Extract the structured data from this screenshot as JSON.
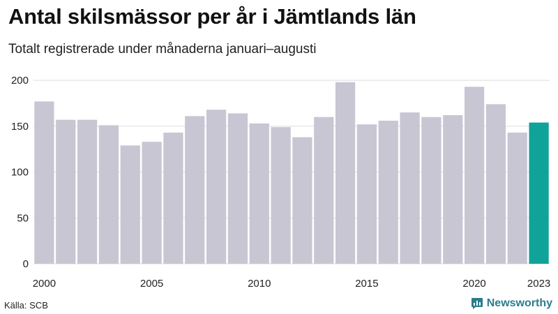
{
  "title": "Antal skilsmässor per år i Jämtlands län",
  "subtitle": "Totalt registrerade under månaderna januari–augusti",
  "source": "Källa: SCB",
  "brand": {
    "name": "Newsworthy",
    "icon": "newsworthy-logo-icon",
    "color": "#2c7c8c"
  },
  "chart_data": {
    "type": "bar",
    "categories": [
      "2000",
      "2001",
      "2002",
      "2003",
      "2004",
      "2005",
      "2006",
      "2007",
      "2008",
      "2009",
      "2010",
      "2011",
      "2012",
      "2013",
      "2014",
      "2015",
      "2016",
      "2017",
      "2018",
      "2019",
      "2020",
      "2021",
      "2022",
      "2023"
    ],
    "values": [
      177,
      157,
      157,
      151,
      129,
      133,
      143,
      161,
      168,
      164,
      153,
      149,
      138,
      160,
      198,
      152,
      156,
      165,
      160,
      162,
      193,
      174,
      143,
      154
    ],
    "x_tick_labels": [
      "2000",
      "2005",
      "2010",
      "2015",
      "2020",
      "2023"
    ],
    "y_ticks": [
      0,
      50,
      100,
      150,
      200
    ],
    "ylim": [
      0,
      210
    ],
    "grid": true,
    "colors": {
      "bar": "#c8c6d3",
      "highlight": "#10a39a",
      "grid": "#dddddd"
    },
    "highlight_category": "2023"
  }
}
